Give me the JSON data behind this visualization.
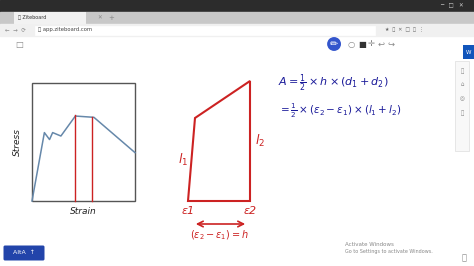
{
  "bg_color": "#e8e8e8",
  "whiteboard_bg": "#ffffff",
  "browser_top_bar": "#3a3a3a",
  "browser_tab_bar": "#d0d0d0",
  "browser_nav_bar": "#eeeeee",
  "tab_active_color": "#f2f2f2",
  "url_text": "app.ziteboard.com",
  "curve_color": "#6688aa",
  "box_color": "#555555",
  "red_color": "#cc2222",
  "blue_color": "#1a1a99",
  "text_dark": "#222222",
  "badge_color": "#3333aa",
  "win_text_color": "#888888",
  "stress_label": "Stress",
  "strain_label": "Strain",
  "l1_label": "l_1",
  "l2_label": "l_2",
  "eps1_label": "ε1",
  "eps2_label": "ε2"
}
